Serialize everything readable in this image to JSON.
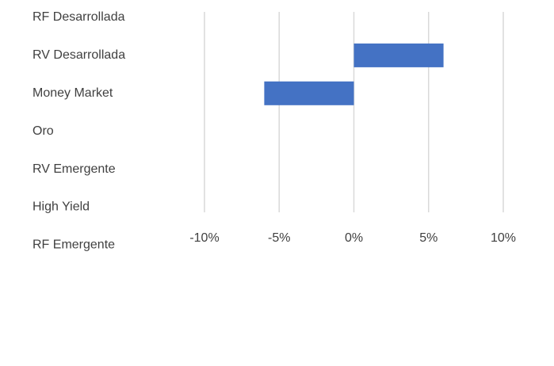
{
  "chart_data": {
    "type": "barh",
    "categories": [
      "RF Desarrollada",
      "RV Desarrollada",
      "Money Market",
      "Oro",
      "RV Emergente",
      "High Yield",
      "RF Emergente"
    ],
    "values": [
      0,
      6,
      -6,
      0,
      0,
      0,
      0
    ],
    "color": "#4472c4",
    "xlim": [
      -10,
      10
    ],
    "xticks": [
      {
        "value": -10,
        "label": "-10%"
      },
      {
        "value": -5,
        "label": "-5%"
      },
      {
        "value": 0,
        "label": "0%"
      },
      {
        "value": 5,
        "label": "5%"
      },
      {
        "value": 10,
        "label": "10%"
      }
    ],
    "grid": true
  }
}
